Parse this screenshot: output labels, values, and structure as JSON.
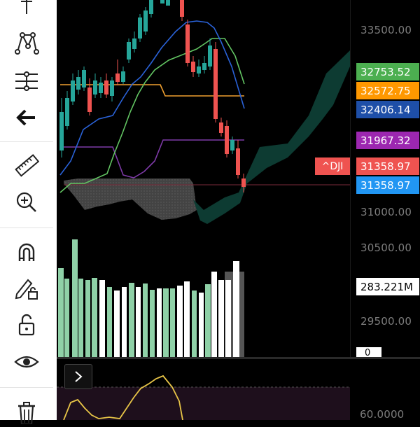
{
  "toolbar": {
    "tools": [
      {
        "name": "vertical-line-tool-icon"
      },
      {
        "name": "pattern-tool-icon"
      },
      {
        "name": "fib-channel-tool-icon"
      },
      {
        "name": "back-arrow-icon"
      },
      {
        "name": "ruler-icon"
      },
      {
        "name": "zoom-in-icon"
      },
      {
        "name": "magnet-icon"
      },
      {
        "name": "lock-drawing-icon"
      },
      {
        "name": "lock-icon"
      },
      {
        "name": "eye-icon"
      },
      {
        "name": "trash-icon"
      }
    ]
  },
  "price_axis": {
    "ticks": [
      "33500.00",
      "31000.00",
      "30500.00",
      "29500.00"
    ],
    "volume_tick": "0",
    "osc_tick": "60.0000"
  },
  "price_tags": [
    {
      "value": "32753.52",
      "color": "#4caf50"
    },
    {
      "value": "32572.75",
      "color": "#ff9800"
    },
    {
      "value": "32406.14",
      "color": "#1e4fa8"
    },
    {
      "value": "31967.32",
      "color": "#9c27b0"
    },
    {
      "value": "31358.97",
      "color": "#ef5350"
    },
    {
      "value": "31358.97",
      "color": "#2196f3"
    },
    {
      "value": "283.221M",
      "color": "#ffffff"
    }
  ],
  "ticker": "^DJI",
  "colors": {
    "up": "#26a69a",
    "down": "#ef5350",
    "volume_up": "#8fd1a7",
    "volume_down": "#ffffff",
    "cloud_green": "#0d3b32",
    "cloud_gray": "#555555",
    "oscillator": "#e8c547",
    "line_green": "#62c462",
    "line_blue": "#2a62d8",
    "line_orange": "#f0a030",
    "line_purple": "#7e3aa8"
  }
}
